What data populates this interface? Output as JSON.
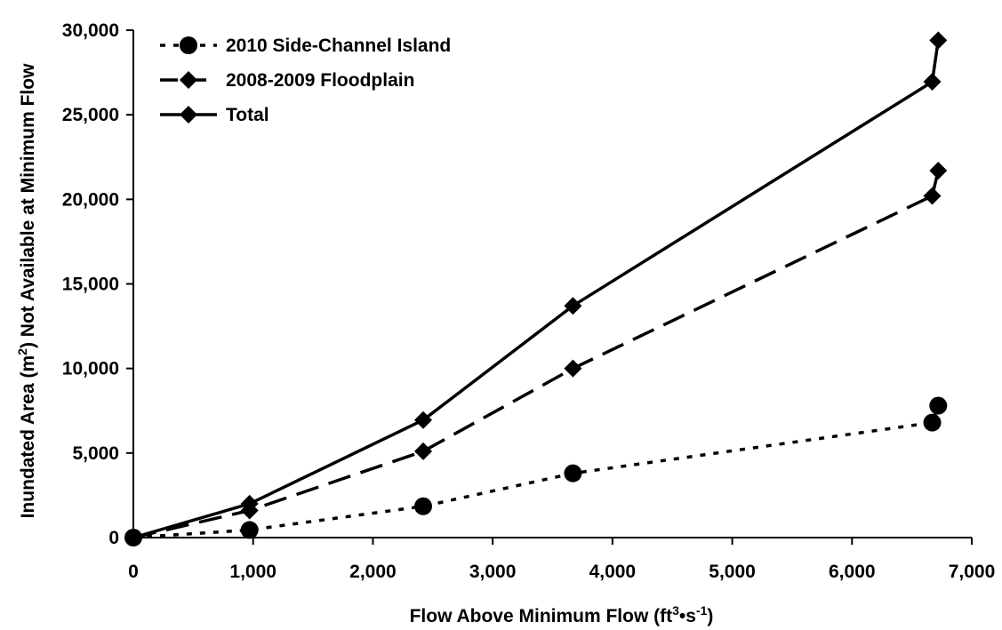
{
  "chart_data": {
    "type": "line",
    "title": "",
    "xlabel": {
      "parts": [
        {
          "text": "Flow Above Minimum Flow (ft"
        },
        {
          "text": "3",
          "sup": true
        },
        {
          "text": "•s"
        },
        {
          "text": "-1",
          "sup": true
        },
        {
          "text": ")"
        }
      ]
    },
    "ylabel": {
      "parts": [
        {
          "text": "Inundated Area (m"
        },
        {
          "text": "2",
          "sup": true
        },
        {
          "text": ") Not Available at Minimum Flow"
        }
      ]
    },
    "xlim": [
      0,
      7000
    ],
    "ylim": [
      0,
      30000
    ],
    "x_ticks": [
      0,
      1000,
      2000,
      3000,
      4000,
      5000,
      6000,
      7000
    ],
    "x_tick_labels": [
      "0",
      "1,000",
      "2,000",
      "3,000",
      "4,000",
      "5,000",
      "6,000",
      "7,000"
    ],
    "y_ticks": [
      0,
      5000,
      10000,
      15000,
      20000,
      25000,
      30000
    ],
    "y_tick_labels": [
      "0",
      "5,000",
      "10,000",
      "15,000",
      "20,000",
      "25,000",
      "30,000"
    ],
    "grid": false,
    "legend_position": "top-left",
    "series": [
      {
        "name": "2010 Side-Channel Island",
        "marker": "circle",
        "line_style": "dotted",
        "color": "#000000",
        "points": [
          {
            "x": 0,
            "y": 0
          },
          {
            "x": 970,
            "y": 450
          },
          {
            "x": 2420,
            "y": 1850
          },
          {
            "x": 3670,
            "y": 3800
          },
          {
            "x": 6670,
            "y": 6800
          },
          {
            "x": 6720,
            "y": 7800
          }
        ]
      },
      {
        "name": "2008-2009 Floodplain",
        "marker": "diamond",
        "line_style": "dashed",
        "color": "#000000",
        "points": [
          {
            "x": 0,
            "y": 0
          },
          {
            "x": 970,
            "y": 1600
          },
          {
            "x": 2420,
            "y": 5100
          },
          {
            "x": 3670,
            "y": 10000
          },
          {
            "x": 6670,
            "y": 20200
          },
          {
            "x": 6720,
            "y": 21700
          }
        ]
      },
      {
        "name": "Total",
        "marker": "diamond",
        "line_style": "solid",
        "color": "#000000",
        "points": [
          {
            "x": 0,
            "y": 0
          },
          {
            "x": 970,
            "y": 2000
          },
          {
            "x": 2420,
            "y": 6950
          },
          {
            "x": 3670,
            "y": 13700
          },
          {
            "x": 6670,
            "y": 26950
          },
          {
            "x": 6720,
            "y": 29400
          }
        ]
      }
    ]
  }
}
